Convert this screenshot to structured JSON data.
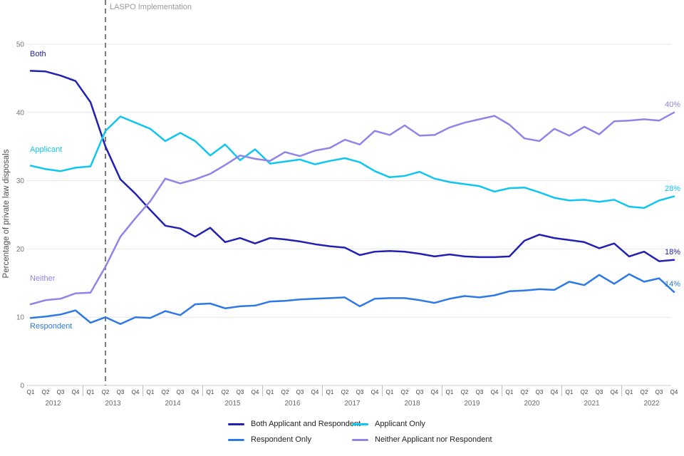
{
  "chart_data": {
    "type": "line",
    "ylabel": "Percentage of private law disposals",
    "ylim": [
      0,
      50
    ],
    "yticks": [
      0,
      10,
      20,
      30,
      40,
      50
    ],
    "grid": "horizontal",
    "quarter_labels": [
      "Q1",
      "Q2",
      "Q3",
      "Q4"
    ],
    "years": [
      "2012",
      "2013",
      "2014",
      "2015",
      "2016",
      "2017",
      "2018",
      "2019",
      "2020",
      "2021",
      "2022"
    ],
    "annotation": {
      "label": "LASPO Implementation",
      "x_year": "2013",
      "x_quarter": "Q2",
      "x_index": 5,
      "line_color": "#7c7c7c"
    },
    "legend_position": "bottom",
    "series": [
      {
        "id": "both",
        "name": "Both Applicant and Respondent",
        "inline_label": "Both",
        "end_label": "18%",
        "color": "#2121b4",
        "values": [
          46.1,
          46.0,
          45.4,
          44.6,
          41.5,
          35.0,
          30.2,
          28.1,
          25.7,
          23.4,
          23.0,
          21.8,
          23.1,
          21.0,
          21.6,
          20.8,
          21.6,
          21.4,
          21.1,
          20.7,
          20.4,
          20.2,
          19.1,
          19.6,
          19.7,
          19.6,
          19.3,
          18.9,
          19.2,
          18.9,
          18.8,
          18.8,
          18.9,
          21.2,
          22.1,
          21.6,
          21.3,
          21.0,
          20.1,
          20.8,
          18.9,
          19.6,
          18.2,
          18.4
        ]
      },
      {
        "id": "applicant",
        "name": "Applicant Only",
        "inline_label": "Applicant",
        "end_label": "28%",
        "color": "#10c6f0",
        "values": [
          32.2,
          31.7,
          31.4,
          31.9,
          32.1,
          37.3,
          39.4,
          38.5,
          37.6,
          35.8,
          37.0,
          35.8,
          33.7,
          35.3,
          33.0,
          34.6,
          32.5,
          32.8,
          33.1,
          32.4,
          32.9,
          33.3,
          32.7,
          31.4,
          30.5,
          30.7,
          31.3,
          30.3,
          29.8,
          29.5,
          29.2,
          28.4,
          28.9,
          29.0,
          28.3,
          27.5,
          27.1,
          27.2,
          26.9,
          27.2,
          26.2,
          26.0,
          27.1,
          27.7
        ]
      },
      {
        "id": "respondent",
        "name": "Respondent Only",
        "inline_label": "Respondent",
        "end_label": "14%",
        "color": "#2d79e6",
        "values": [
          9.9,
          10.1,
          10.4,
          11.0,
          9.2,
          10.0,
          9.0,
          10.0,
          9.9,
          10.9,
          10.3,
          11.9,
          12.0,
          11.3,
          11.6,
          11.7,
          12.3,
          12.4,
          12.6,
          12.7,
          12.8,
          12.9,
          11.6,
          12.7,
          12.8,
          12.8,
          12.5,
          12.1,
          12.7,
          13.1,
          12.9,
          13.2,
          13.8,
          13.9,
          14.1,
          14.0,
          15.2,
          14.7,
          16.2,
          14.9,
          16.3,
          15.2,
          15.7,
          13.7
        ]
      },
      {
        "id": "neither",
        "name": "Neither Applicant nor Respondent",
        "inline_label": "Neither",
        "end_label": "40%",
        "color": "#9184e8",
        "values": [
          11.9,
          12.5,
          12.7,
          13.5,
          13.6,
          17.4,
          21.8,
          24.5,
          27.0,
          30.3,
          29.6,
          30.2,
          31.0,
          32.3,
          33.7,
          33.2,
          32.9,
          34.2,
          33.6,
          34.4,
          34.8,
          36.0,
          35.3,
          37.3,
          36.7,
          38.1,
          36.6,
          36.7,
          37.8,
          38.5,
          39.0,
          39.5,
          38.2,
          36.2,
          35.8,
          37.6,
          36.6,
          37.9,
          36.8,
          38.7,
          38.8,
          39.0,
          38.8,
          40.0
        ]
      }
    ],
    "styles": {
      "gridline_color": "#e6e6e6",
      "baseline_color": "#cfcfcf",
      "ytick_color": "#757575",
      "quarter_label_color": "#3f3f3f",
      "year_label_color": "#6b6b6b",
      "separator_color": "#bfbfbf"
    }
  }
}
